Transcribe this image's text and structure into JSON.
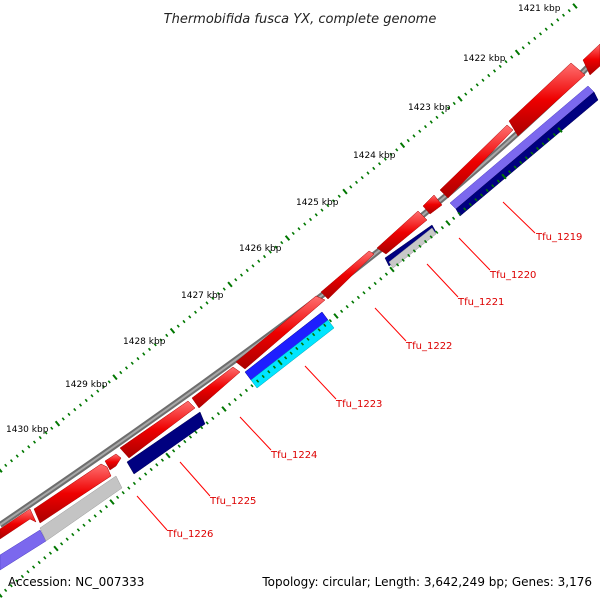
{
  "title": "Thermobifida fusca YX, complete genome",
  "accession": "Accession: NC_007333",
  "summary": "Topology: circular; Length: 3,642,249 bp; Genes: 3,176",
  "kbp_ticks": [
    "1421 kbp",
    "1422 kbp",
    "1423 kbp",
    "1424 kbp",
    "1425 kbp",
    "1426 kbp",
    "1427 kbp",
    "1428 kbp",
    "1429 kbp",
    "1430 kbp"
  ],
  "gene_labels": [
    "Tfu_1219",
    "Tfu_1220",
    "Tfu_1221",
    "Tfu_1222",
    "Tfu_1223",
    "Tfu_1224",
    "Tfu_1225",
    "Tfu_1226"
  ],
  "colors": {
    "backbone": "#8a8a8a",
    "forward_cds": "#ee0000",
    "reverse_navy": "#000080",
    "reverse_slate": "#7b68ee",
    "reverse_gray": "#c0c0c0",
    "reverse_blue": "#1e1eff",
    "reverse_cyan": "#00e5ff",
    "tick_green": "#007700",
    "label_red": "#dd0000"
  }
}
